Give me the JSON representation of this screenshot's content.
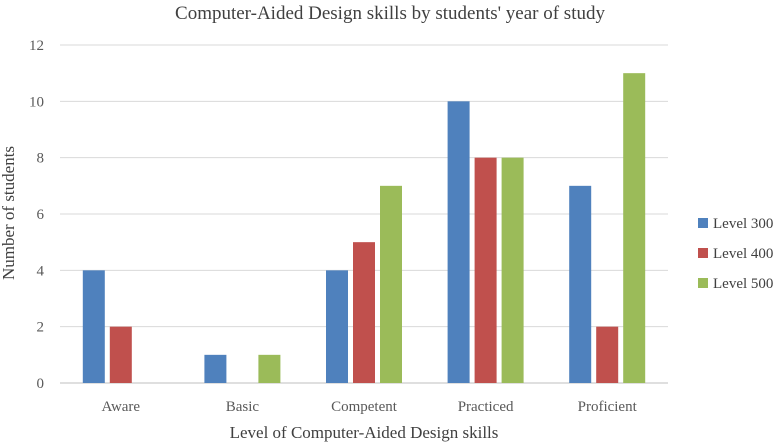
{
  "chart_data": {
    "type": "bar",
    "title": "Computer-Aided Design skills by students' year of study",
    "xlabel": "Level of Computer-Aided Design skills",
    "ylabel": "Number of students",
    "categories": [
      "Aware",
      "Basic",
      "Competent",
      "Practiced",
      "Proficient"
    ],
    "series": [
      {
        "name": "Level 300",
        "values": [
          4,
          1,
          4,
          10,
          7
        ],
        "color": "#4f81bd"
      },
      {
        "name": "Level 400",
        "values": [
          2,
          0,
          5,
          8,
          2
        ],
        "color": "#c0504d"
      },
      {
        "name": "Level 500",
        "values": [
          0,
          1,
          7,
          8,
          11
        ],
        "color": "#9bbb59"
      }
    ],
    "ylim": [
      0,
      12
    ],
    "yticks": [
      0,
      2,
      4,
      6,
      8,
      10,
      12
    ],
    "grid": true,
    "legend": "right"
  }
}
